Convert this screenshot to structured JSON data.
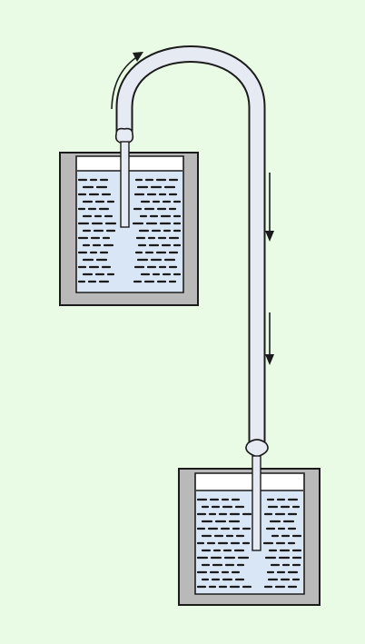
{
  "diagram": {
    "subject": "siphon",
    "colors": {
      "background": "#e9fbe4",
      "container_wall": "#b9b9b9",
      "container_inner": "#ffffff",
      "water": "#d8e6f6",
      "water_dash": "#1b1b1b",
      "tube_fill": "#e6ebf3",
      "tube_outline": "#1b1b1b",
      "arrow": "#1b1b1b"
    },
    "components": [
      {
        "id": "upper-container",
        "role": "source",
        "water_level": "nearly-full"
      },
      {
        "id": "lower-container",
        "role": "receiver",
        "water_level": "nearly-full"
      },
      {
        "id": "siphon-tube",
        "shape": "inverted-J"
      }
    ],
    "arrows": [
      {
        "id": "flow-arrow-top",
        "direction": "down",
        "icon": "down-arrow-icon"
      },
      {
        "id": "flow-arrow-bottom",
        "direction": "down",
        "icon": "down-arrow-icon"
      },
      {
        "id": "rotation-arrow",
        "direction": "clockwise-up",
        "icon": "curved-arrow-icon"
      }
    ]
  }
}
